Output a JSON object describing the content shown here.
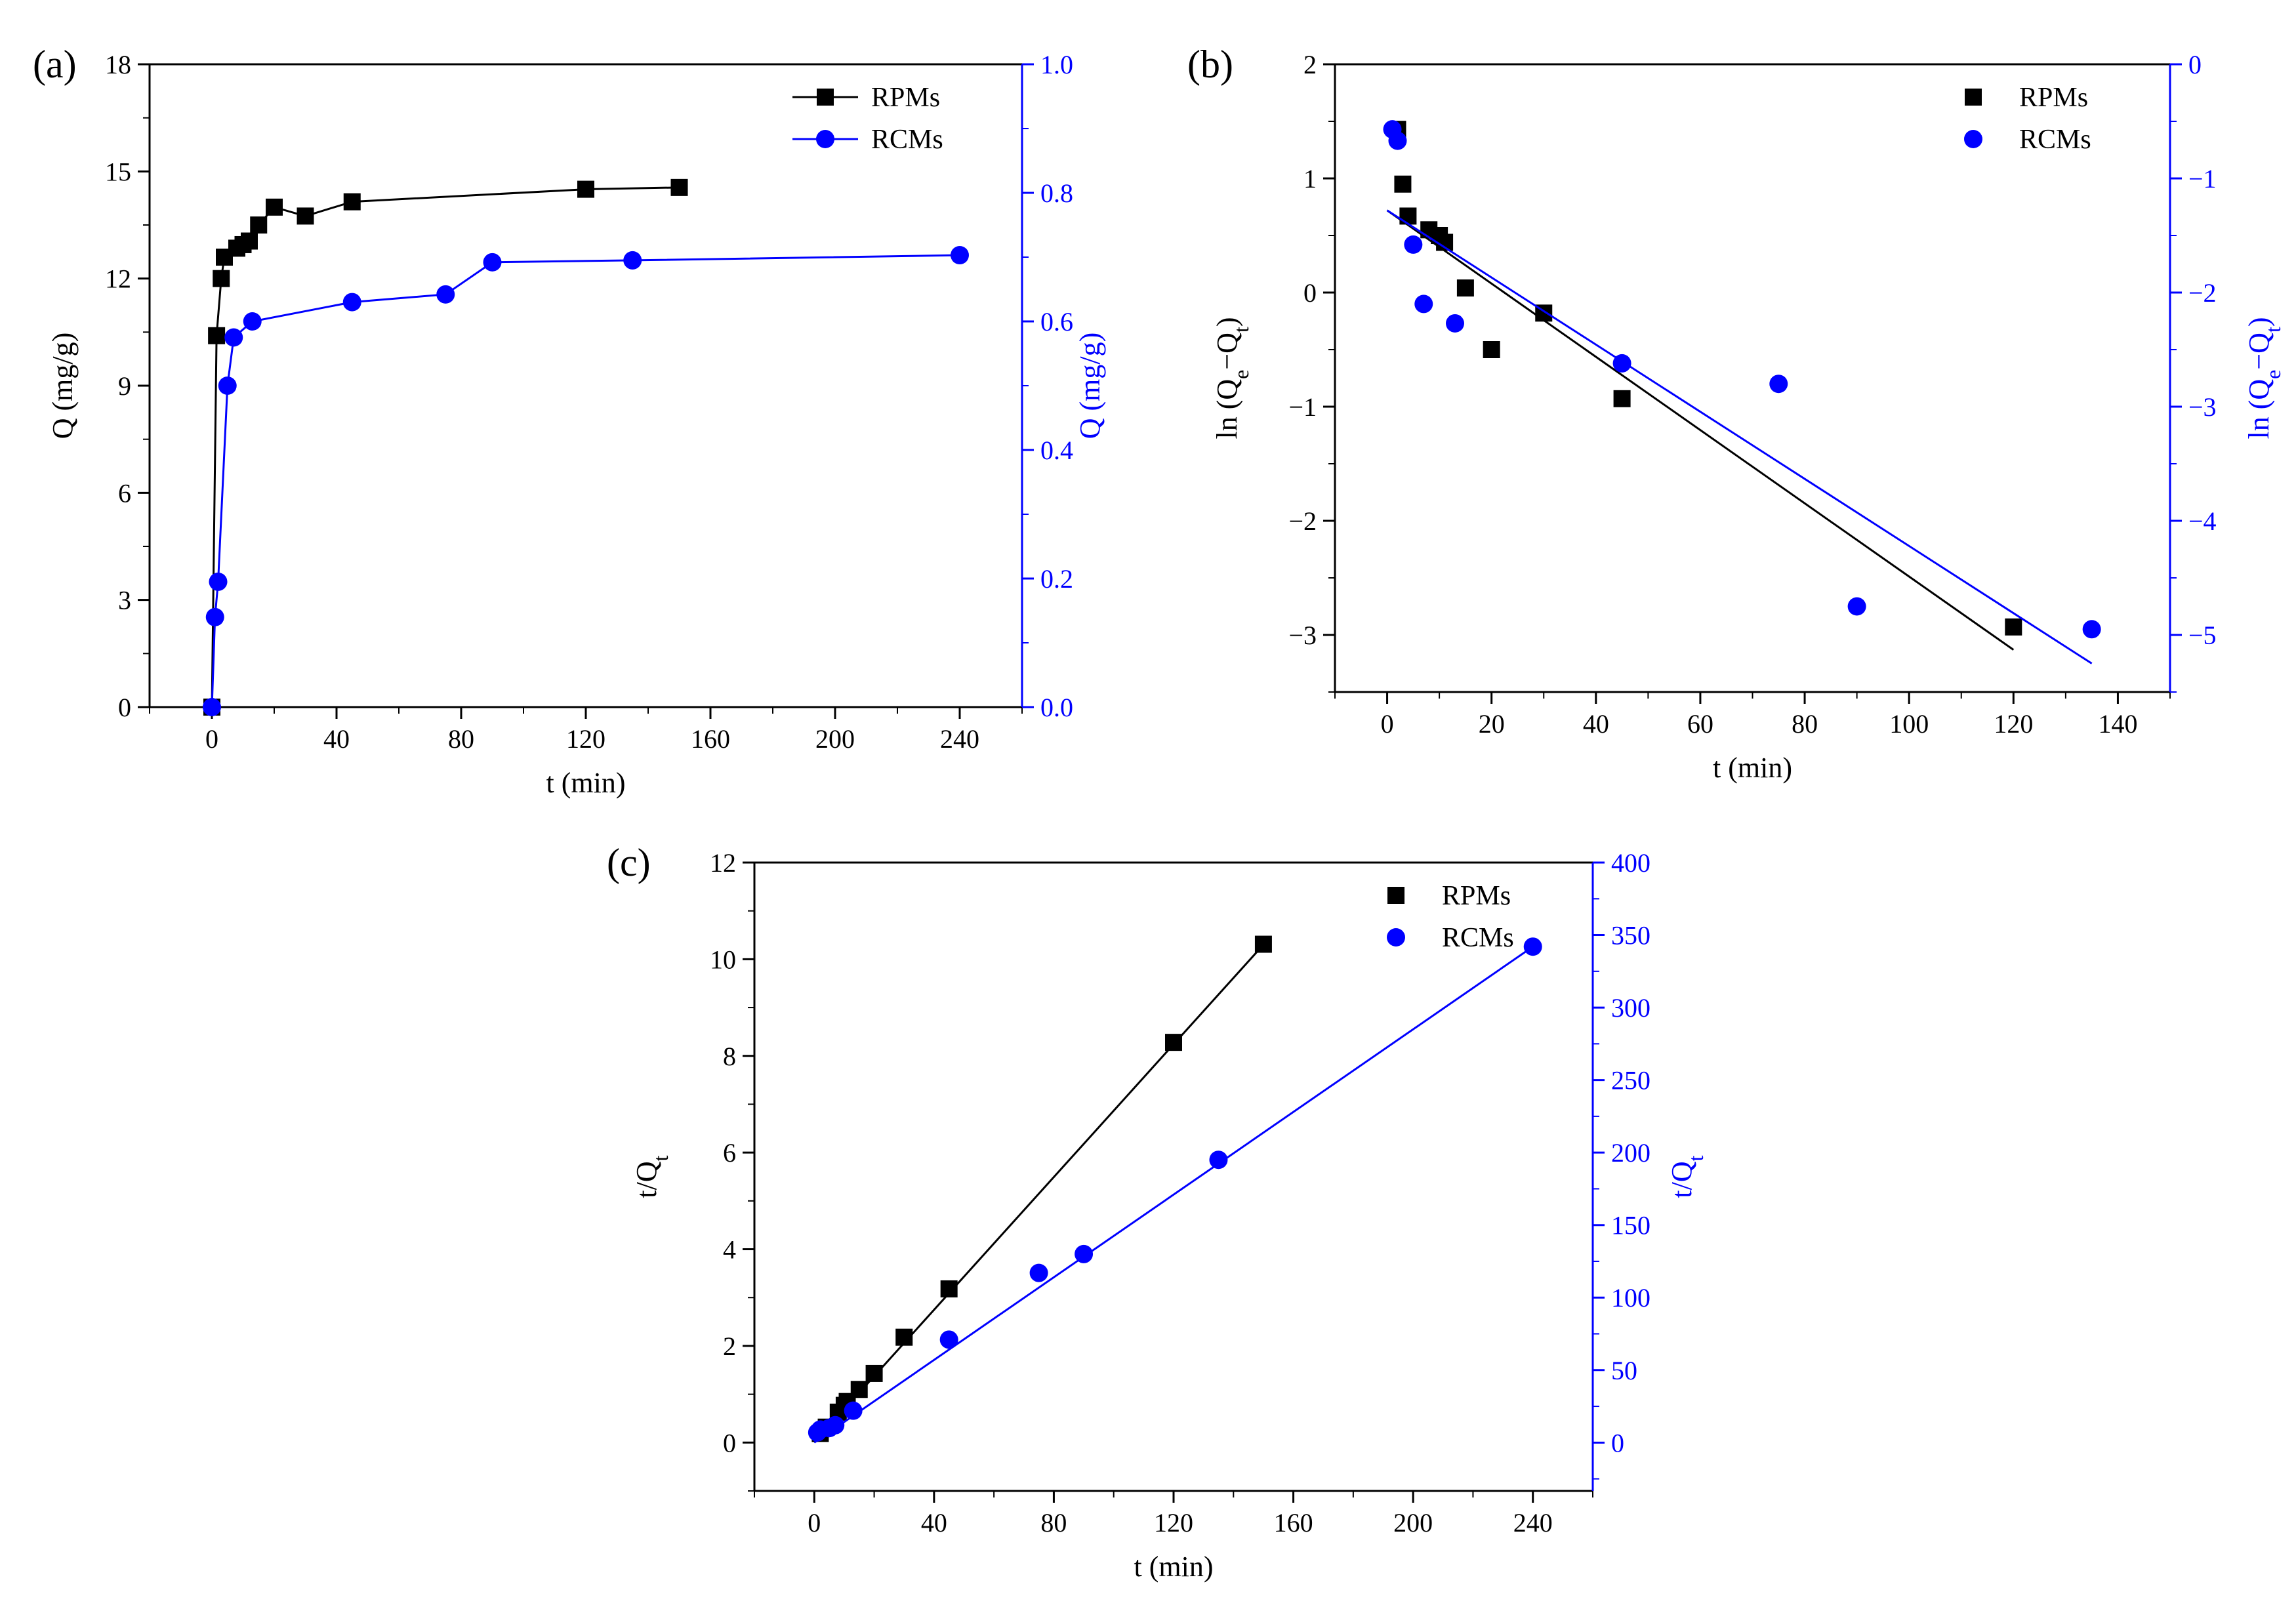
{
  "colors": {
    "primary": "#000000",
    "secondary": "#0000ff"
  },
  "chart_data": [
    {
      "id": "a",
      "panel_label": "(a)",
      "type": "line",
      "xlabel": "t (min)",
      "ylabel": "Q (mg/g)",
      "y2label": "Q (mg/g)",
      "xlim": [
        -20,
        260
      ],
      "ylim": [
        0,
        18
      ],
      "y2lim": [
        0,
        1.0
      ],
      "xticks": [
        0,
        40,
        80,
        120,
        160,
        200,
        240
      ],
      "yticks": [
        0,
        3,
        6,
        9,
        12,
        15,
        18
      ],
      "y2ticks": [
        0.0,
        0.2,
        0.4,
        0.6,
        0.8,
        1.0
      ],
      "xtick_labels": [
        "0",
        "40",
        "80",
        "120",
        "160",
        "200",
        "240"
      ],
      "ytick_labels": [
        "0",
        "3",
        "6",
        "9",
        "12",
        "15",
        "18"
      ],
      "y2tick_labels": [
        "0.0",
        "0.2",
        "0.4",
        "0.6",
        "0.8",
        "1.0"
      ],
      "legend": "top-right",
      "series": [
        {
          "name": "RPMs",
          "axis": "left",
          "marker": "square",
          "color": "#000000",
          "connect": true,
          "x": [
            0,
            1.5,
            3,
            4,
            8,
            10,
            12,
            15,
            20,
            30,
            45,
            120,
            150
          ],
          "y": [
            0,
            10.4,
            12.0,
            12.6,
            12.85,
            12.95,
            13.05,
            13.5,
            14.0,
            13.75,
            14.15,
            14.5,
            14.55
          ]
        },
        {
          "name": "RCMs",
          "axis": "right",
          "marker": "circle",
          "color": "#0000ff",
          "connect": true,
          "x": [
            0,
            1,
            2,
            5,
            7,
            13,
            45,
            75,
            90,
            135,
            240
          ],
          "y": [
            0,
            0.14,
            0.195,
            0.5,
            0.575,
            0.6,
            0.63,
            0.642,
            0.692,
            0.695,
            0.703
          ]
        }
      ]
    },
    {
      "id": "b",
      "panel_label": "(b)",
      "type": "scatter",
      "xlabel": "t (min)",
      "ylabel": "ln (Qe−Qt)",
      "y2label": "ln (Qe−Qt)",
      "ylabel_parts": {
        "prefix": "ln (Q",
        "sub1": "e",
        "mid": "−Q",
        "sub2": "t",
        "suffix": ")"
      },
      "xlim": [
        -10,
        150
      ],
      "ylim": [
        -3.5,
        2
      ],
      "y2lim": [
        -5.5,
        0
      ],
      "xticks": [
        0,
        20,
        40,
        60,
        80,
        100,
        120,
        140
      ],
      "yticks": [
        -3,
        -2,
        -1,
        0,
        1,
        2
      ],
      "y2ticks": [
        -5,
        -4,
        -3,
        -2,
        -1,
        0
      ],
      "xtick_labels": [
        "0",
        "20",
        "40",
        "60",
        "80",
        "100",
        "120",
        "140"
      ],
      "ytick_labels": [
        "−3",
        "−2",
        "−1",
        "0",
        "1",
        "2"
      ],
      "y2tick_labels": [
        "−5",
        "−4",
        "−3",
        "−2",
        "−1",
        "0"
      ],
      "legend": "top-right",
      "series": [
        {
          "name": "RPMs",
          "axis": "left",
          "marker": "square",
          "color": "#000000",
          "x": [
            2,
            3,
            4,
            8,
            10,
            11,
            15,
            20,
            30,
            45,
            120
          ],
          "y": [
            1.43,
            0.95,
            0.67,
            0.55,
            0.5,
            0.44,
            0.04,
            -0.5,
            -0.18,
            -0.93,
            -2.93
          ],
          "fit": {
            "x": [
              0,
              120
            ],
            "y": [
              0.72,
              -3.13
            ]
          }
        },
        {
          "name": "RCMs",
          "axis": "right",
          "marker": "circle",
          "color": "#0000ff",
          "x": [
            1,
            2,
            5,
            7,
            13,
            45,
            75,
            90,
            135
          ],
          "y": [
            -0.57,
            -0.67,
            -1.58,
            -2.1,
            -2.27,
            -2.62,
            -2.8,
            -4.75,
            -4.95
          ],
          "fit": {
            "x": [
              0,
              135
            ],
            "y": [
              -1.28,
              -5.25
            ]
          }
        }
      ]
    },
    {
      "id": "c",
      "panel_label": "(c)",
      "type": "scatter",
      "xlabel": "t (min)",
      "ylabel": "t/Qt",
      "y2label": "t/Qt",
      "ylabel_parts": {
        "prefix": "t/Q",
        "sub1": "t"
      },
      "xlim": [
        -20,
        260
      ],
      "ylim": [
        -1,
        12
      ],
      "y2lim": [
        -33.33,
        400
      ],
      "xticks": [
        0,
        40,
        80,
        120,
        160,
        200,
        240
      ],
      "yticks": [
        0,
        2,
        4,
        6,
        8,
        10,
        12
      ],
      "y2ticks": [
        0,
        50,
        100,
        150,
        200,
        250,
        300,
        350,
        400
      ],
      "xtick_labels": [
        "0",
        "40",
        "80",
        "120",
        "160",
        "200",
        "240"
      ],
      "ytick_labels": [
        "0",
        "2",
        "4",
        "6",
        "8",
        "10",
        "12"
      ],
      "y2tick_labels": [
        "0",
        "50",
        "100",
        "150",
        "200",
        "250",
        "300",
        "350",
        "400"
      ],
      "legend": "top-right",
      "series": [
        {
          "name": "RPMs",
          "axis": "left",
          "marker": "square",
          "color": "#000000",
          "x": [
            2,
            4,
            8,
            10,
            11,
            15,
            20,
            30,
            45,
            120,
            150
          ],
          "y": [
            0.19,
            0.32,
            0.63,
            0.77,
            0.85,
            1.1,
            1.43,
            2.18,
            3.18,
            8.28,
            10.31
          ],
          "fit": {
            "x": [
              0,
              150
            ],
            "y": [
              0.0,
              10.3
            ]
          }
        },
        {
          "name": "RCMs",
          "axis": "right",
          "marker": "circle",
          "color": "#0000ff",
          "x": [
            1,
            2,
            5,
            7,
            13,
            45,
            75,
            90,
            135,
            240
          ],
          "y": [
            7,
            9,
            10,
            12,
            22,
            71,
            117,
            130,
            195,
            342
          ],
          "fit": {
            "x": [
              0,
              240
            ],
            "y": [
              0,
              342
            ]
          }
        }
      ]
    }
  ]
}
